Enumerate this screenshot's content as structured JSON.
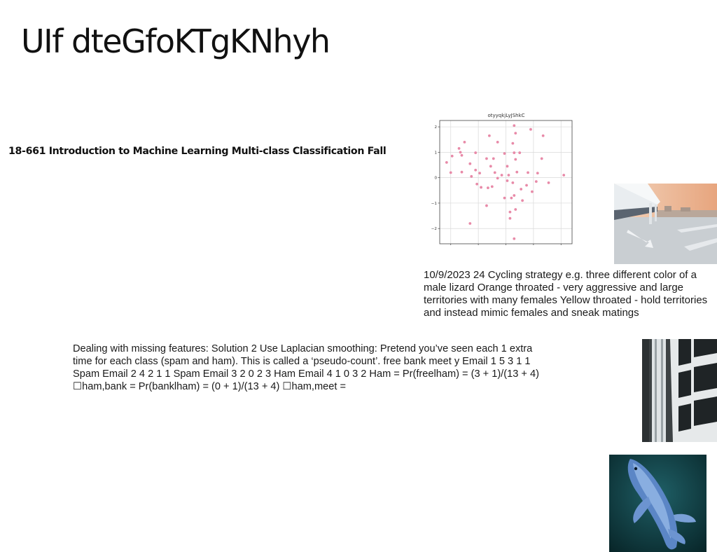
{
  "slide": {
    "title": "UIf dteGfoKTgKNhyh",
    "course_line": "18-661 Introduction to Machine Learning Multi-class Classification Fall",
    "paragraph_1": "10/9/2023 24 Cycling strategy e.g. three different color of a male lizard Orange throated - very aggressive and large territories with many females Yellow throated - hold territories and instead mimic females and sneak matings",
    "paragraph_2": "Dealing with missing features: Solution 2 Use Laplacian smoothing: Pretend you’ve seen each 1 extra time for each class (spam and ham). This is called a ‘pseudo-count’. free bank meet y Email 1 5 3 1 1 Spam Email 2 4 2 1 1 Spam Email 3 2 0 2 3 Ham Email 4 1 0 3 2 Ham = Pr(freelham) = (3 + 1)/(13 + 4) ☐ham,bank = Pr(banklham) = (0 + 1)/(13 + 4) ☐ham,meet ="
  },
  "images": {
    "road": "road-photo",
    "building": "building-photo",
    "fish": "koi-fish-photo"
  },
  "chart_data": {
    "type": "scatter",
    "title": "otyyqkjLyJShkC",
    "xlabel": "",
    "ylabel": "",
    "xlim": [
      -2.4,
      2.4
    ],
    "ylim": [
      -2.6,
      2.25
    ],
    "xticks": [
      -2,
      -1,
      0,
      1,
      2
    ],
    "yticks": [
      -2,
      -1,
      0,
      1,
      2
    ],
    "xtick_labels": [
      "−2",
      "−1",
      "0",
      "1",
      "2"
    ],
    "ytick_labels": [
      "−2",
      "−1",
      "0",
      "1",
      "2"
    ],
    "grid": true,
    "marker_color": "#e88aa8",
    "points": [
      {
        "x": 0.3,
        "y": 2.05
      },
      {
        "x": 0.9,
        "y": 1.9
      },
      {
        "x": 0.35,
        "y": 1.75
      },
      {
        "x": -0.6,
        "y": 1.65
      },
      {
        "x": 1.35,
        "y": 1.65
      },
      {
        "x": -1.5,
        "y": 1.4
      },
      {
        "x": -0.3,
        "y": 1.4
      },
      {
        "x": 0.25,
        "y": 1.35
      },
      {
        "x": -1.7,
        "y": 1.15
      },
      {
        "x": -1.65,
        "y": 1.0
      },
      {
        "x": -1.1,
        "y": 0.98
      },
      {
        "x": 0.3,
        "y": 0.98
      },
      {
        "x": 0.5,
        "y": 0.98
      },
      {
        "x": -0.05,
        "y": 0.95
      },
      {
        "x": -1.6,
        "y": 0.88
      },
      {
        "x": -1.95,
        "y": 0.85
      },
      {
        "x": -0.7,
        "y": 0.75
      },
      {
        "x": -0.45,
        "y": 0.75
      },
      {
        "x": 0.35,
        "y": 0.72
      },
      {
        "x": 1.3,
        "y": 0.75
      },
      {
        "x": -2.15,
        "y": 0.6
      },
      {
        "x": -1.3,
        "y": 0.55
      },
      {
        "x": -0.55,
        "y": 0.45
      },
      {
        "x": 0.05,
        "y": 0.45
      },
      {
        "x": -1.1,
        "y": 0.3
      },
      {
        "x": -0.95,
        "y": 0.18
      },
      {
        "x": -1.6,
        "y": 0.22
      },
      {
        "x": -2.0,
        "y": 0.2
      },
      {
        "x": -0.4,
        "y": 0.2
      },
      {
        "x": 0.4,
        "y": 0.22
      },
      {
        "x": 0.8,
        "y": 0.2
      },
      {
        "x": 1.15,
        "y": 0.18
      },
      {
        "x": -0.15,
        "y": 0.1
      },
      {
        "x": 0.1,
        "y": 0.1
      },
      {
        "x": 2.1,
        "y": 0.1
      },
      {
        "x": -1.25,
        "y": 0.05
      },
      {
        "x": -0.3,
        "y": -0.02
      },
      {
        "x": 0.05,
        "y": -0.12
      },
      {
        "x": 0.25,
        "y": -0.2
      },
      {
        "x": 1.1,
        "y": -0.15
      },
      {
        "x": 1.55,
        "y": -0.2
      },
      {
        "x": -1.05,
        "y": -0.25
      },
      {
        "x": -0.9,
        "y": -0.38
      },
      {
        "x": -0.65,
        "y": -0.4
      },
      {
        "x": -0.5,
        "y": -0.35
      },
      {
        "x": 0.75,
        "y": -0.3
      },
      {
        "x": 0.55,
        "y": -0.45
      },
      {
        "x": 0.95,
        "y": -0.55
      },
      {
        "x": 0.3,
        "y": -0.7
      },
      {
        "x": -0.05,
        "y": -0.8
      },
      {
        "x": 0.2,
        "y": -0.8
      },
      {
        "x": 0.6,
        "y": -0.9
      },
      {
        "x": -0.7,
        "y": -1.1
      },
      {
        "x": 0.35,
        "y": -1.25
      },
      {
        "x": 0.15,
        "y": -1.35
      },
      {
        "x": 0.15,
        "y": -1.6
      },
      {
        "x": -1.3,
        "y": -1.8
      },
      {
        "x": 0.3,
        "y": -2.4
      }
    ]
  }
}
